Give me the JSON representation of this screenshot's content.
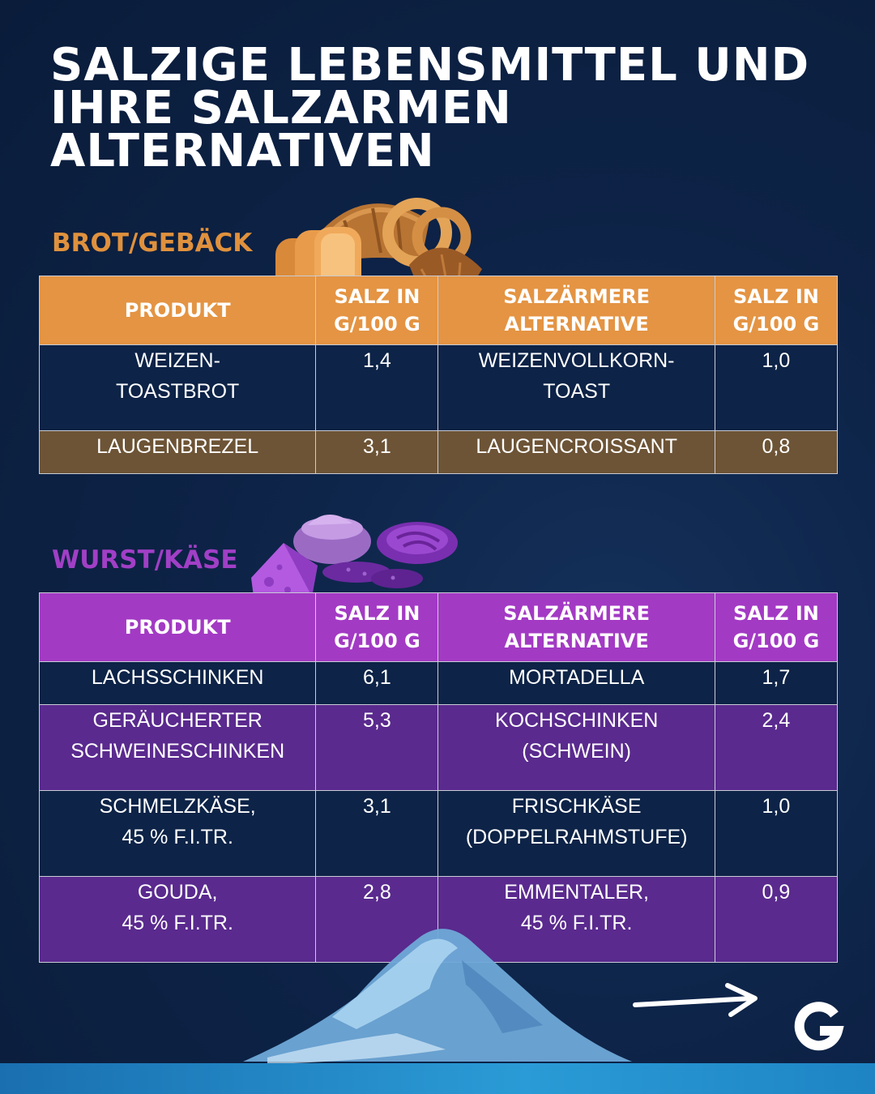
{
  "title_lines": [
    "SALZIGE LEBENSMITTEL UND",
    "IHRE SALZARMEN",
    "ALTERNATIVEN"
  ],
  "sections": [
    {
      "label": "BROT/GEBÄCK",
      "headers": [
        "PRODUKT",
        "SALZ IN G/100 G",
        "SALZÄRMERE ALTERNATIVE",
        "SALZ IN G/100 G"
      ],
      "rows": [
        {
          "product": [
            "WEIZEN-",
            "TOASTBROT"
          ],
          "salt": "1,4",
          "alternative": [
            "WEIZENVOLLKORN-",
            "TOAST"
          ],
          "alt_salt": "1,0"
        },
        {
          "product": [
            "LAUGENBREZEL"
          ],
          "salt": "3,1",
          "alternative": [
            "LAUGENCROISSANT"
          ],
          "alt_salt": "0,8"
        }
      ]
    },
    {
      "label": "WURST/KÄSE",
      "headers": [
        "PRODUKT",
        "SALZ IN G/100 G",
        "SALZÄRMERE ALTERNATIVE",
        "SALZ IN G/100 G"
      ],
      "rows": [
        {
          "product": [
            "LACHSSCHINKEN"
          ],
          "salt": "6,1",
          "alternative": [
            "MORTADELLA"
          ],
          "alt_salt": "1,7"
        },
        {
          "product": [
            "GERÄUCHERTER",
            "SCHWEINESCHINKEN"
          ],
          "salt": "5,3",
          "alternative": [
            "KOCHSCHINKEN",
            "(SCHWEIN)"
          ],
          "alt_salt": "2,4"
        },
        {
          "product": [
            "SCHMELZKÄSE,",
            "45 % F.I.TR."
          ],
          "salt": "3,1",
          "alternative": [
            "FRISCHKÄSE",
            "(DOPPELRAHMSTUFE)"
          ],
          "alt_salt": "1,0"
        },
        {
          "product": [
            "GOUDA,",
            "45 % F.I.TR."
          ],
          "salt": "2,8",
          "alternative": [
            "EMMENTALER,",
            "45 % F.I.TR."
          ],
          "alt_salt": "0,9"
        }
      ]
    }
  ],
  "icons": {
    "bread": "bread-pastry-illustration",
    "cheese": "sausage-cheese-illustration",
    "salt": "salt-pile-illustration",
    "next": "arrow-right-icon",
    "logo": "g-logo-icon"
  },
  "colors": {
    "background": "#0d2347",
    "brot_accent": "#e49443",
    "brot_row": "#6d5436",
    "wurst_accent": "#a33ac4",
    "wurst_row": "#5a2a8e"
  }
}
